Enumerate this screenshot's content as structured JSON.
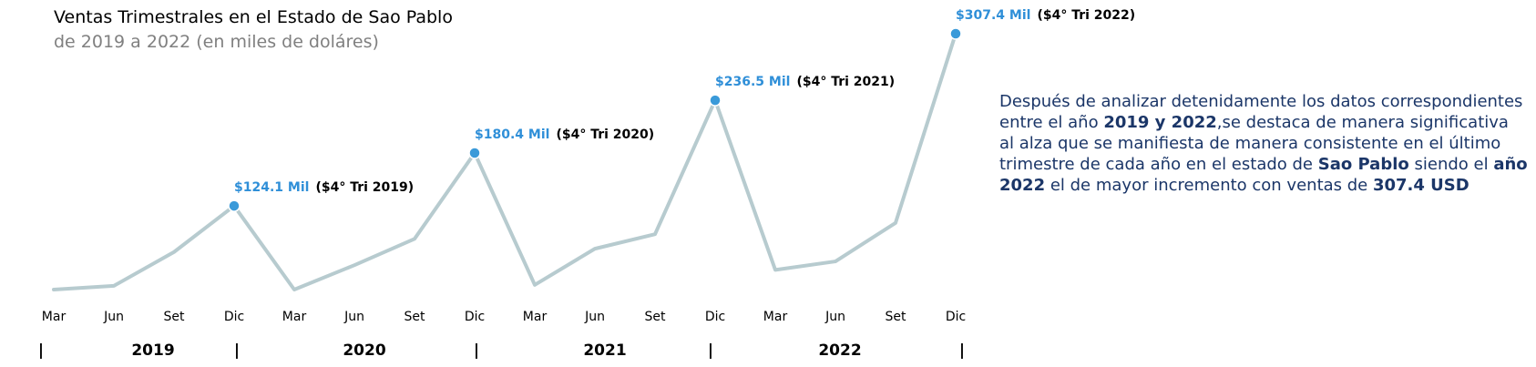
{
  "colors": {
    "line": "#b7cbcf",
    "marker": "#3a9ad9",
    "value": "#2f8fd8",
    "annotation": "#1b3668"
  },
  "chart_data": {
    "type": "line",
    "title": "Ventas Trimestrales en el Estado de Sao Pablo",
    "subtitle": "de 2019 a 2022 (en miles de doláres)",
    "categories": [
      "Mar",
      "Jun",
      "Set",
      "Dic",
      "Mar",
      "Jun",
      "Set",
      "Dic",
      "Mar",
      "Jun",
      "Set",
      "Dic",
      "Mar",
      "Jun",
      "Set",
      "Dic"
    ],
    "years": [
      "2019",
      "2020",
      "2021",
      "2022"
    ],
    "year_separator": "|",
    "series": [
      {
        "values": [
          35.0,
          39.0,
          75.0,
          124.1,
          35.0,
          61.0,
          89.0,
          180.4,
          40.0,
          78.5,
          94.0,
          236.5,
          56.0,
          65.0,
          106.0,
          307.4
        ]
      }
    ],
    "highlights": [
      {
        "index": 3,
        "value_label": "$124.1 Mil",
        "period_label": "($4° Tri 2019)"
      },
      {
        "index": 7,
        "value_label": "$180.4 Mil",
        "period_label": "($4° Tri 2020)"
      },
      {
        "index": 11,
        "value_label": "$236.5 Mil",
        "period_label": "($4° Tri 2021)"
      },
      {
        "index": 15,
        "value_label": "$307.4 Mil",
        "period_label": "($4° Tri 2022)"
      }
    ],
    "ylim": [
      35,
      307.4
    ],
    "grid": false
  },
  "annotation": {
    "l1": "Después de analizar detenidamente los datos correspondientes",
    "l2a": "entre el año ",
    "l2b": "2019 y 2022",
    "l2c": ",se destaca de manera significativa",
    "l3": "al alza que se manifiesta de manera consistente en el último",
    "l4a": "trimestre de cada año en el estado de ",
    "l4b": "Sao Pablo",
    "l4c": " siendo el ",
    "l4d": "año",
    "l5a": "2022",
    "l5b": " el de mayor incremento con ventas de  ",
    "l5c": "307.4 USD"
  }
}
